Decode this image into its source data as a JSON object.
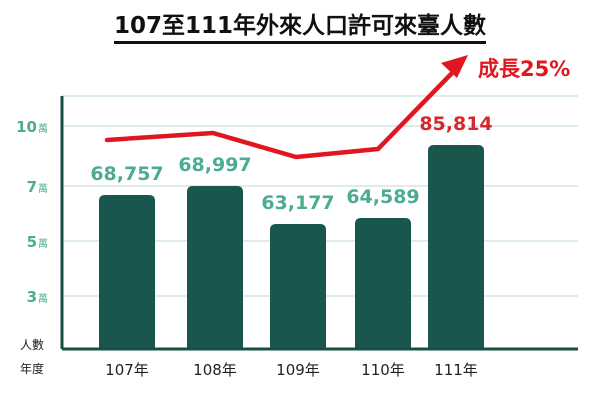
{
  "chart_data": {
    "type": "bar",
    "title": "107至111年外來人口許可來臺人數",
    "categories": [
      "107年",
      "108年",
      "109年",
      "110年",
      "111年"
    ],
    "values": [
      68757,
      68997,
      63177,
      64589,
      85814
    ],
    "value_labels": [
      "68,757",
      "68,997",
      "63,177",
      "64,589",
      "85,814"
    ],
    "y_ticks": [
      {
        "num": "10",
        "unit": "萬"
      },
      {
        "num": "7",
        "unit": "萬"
      },
      {
        "num": "5",
        "unit": "萬"
      },
      {
        "num": "3",
        "unit": "萬"
      }
    ],
    "ylabel": "人數",
    "xlabel": "年度",
    "trend_annotation": "成長25%",
    "colors": {
      "bar": "#19564d",
      "label_teal": "#4cab93",
      "last_label": "#d9262c",
      "trend": "#e0171f",
      "axis": "#174f46",
      "grid": "#d4e7e1"
    },
    "grid": true
  }
}
